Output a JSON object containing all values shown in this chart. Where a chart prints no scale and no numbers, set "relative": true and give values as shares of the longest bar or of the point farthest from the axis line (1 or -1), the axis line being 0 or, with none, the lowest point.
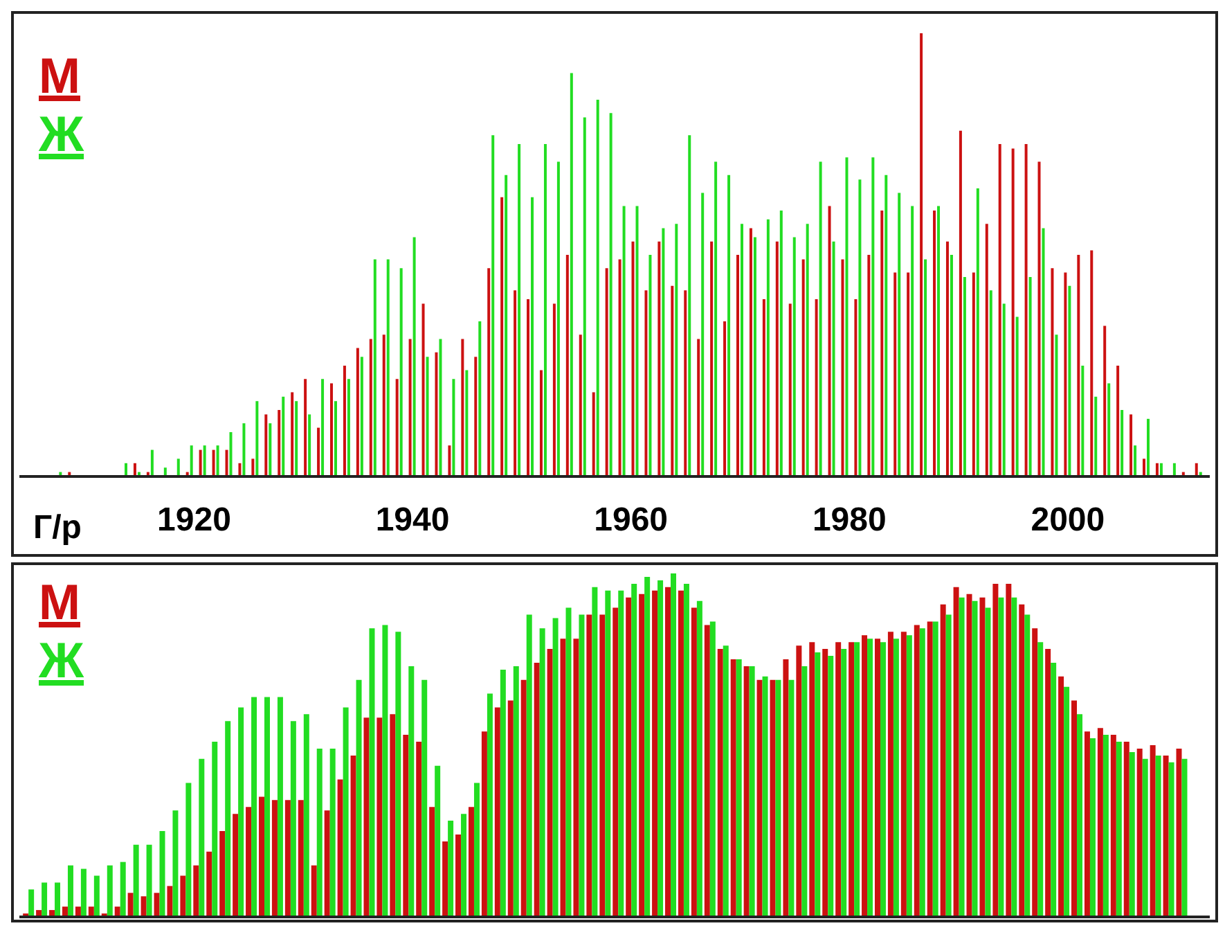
{
  "chart_data": [
    {
      "type": "bar",
      "relative": true,
      "xlabel": "Г/р",
      "xlim": [
        1904,
        2013
      ],
      "xticks": [
        1920,
        1940,
        1960,
        1980,
        2000
      ],
      "tick_labels": "x",
      "legend": "top left",
      "x": [
        1907.6,
        1908.8,
        1910,
        1911.2,
        1912.4,
        1913.6,
        1914.8,
        1916,
        1917.2,
        1918.4,
        1919.6,
        1920.8,
        1922,
        1923.2,
        1924.4,
        1925.6,
        1926.8,
        1928,
        1929.2,
        1930.4,
        1931.6,
        1932.8,
        1934,
        1935.2,
        1936.4,
        1937.6,
        1938.8,
        1940,
        1941.2,
        1942.4,
        1943.6,
        1944.8,
        1946,
        1947.2,
        1948.4,
        1949.6,
        1950.8,
        1952,
        1953.2,
        1954.4,
        1955.6,
        1956.8,
        1958,
        1959.2,
        1960.4,
        1961.6,
        1962.8,
        1964,
        1965.2,
        1966.4,
        1967.6,
        1968.8,
        1970,
        1971.2,
        1972.4,
        1973.6,
        1974.8,
        1976,
        1977.2,
        1978.4,
        1979.6,
        1980.8,
        1982,
        1983.2,
        1984.4,
        1985.6,
        1986.8,
        1988,
        1989.2,
        1990.4,
        1991.6,
        1992.8,
        1994,
        1995.2,
        1996.4,
        1997.6,
        1998.8,
        2000,
        2001.2,
        2002.4,
        2003.6,
        2004.8,
        2006,
        2007.2,
        2008.4,
        2009.6,
        2010.8,
        2012
      ],
      "series": [
        {
          "name": "М",
          "color": "#cc1111",
          "values": [
            0,
            0.01,
            0,
            0,
            0,
            0,
            0.03,
            0.01,
            0,
            0,
            0.01,
            0.06,
            0.06,
            0.06,
            0.03,
            0.04,
            0.14,
            0.15,
            0.19,
            0.22,
            0.11,
            0.21,
            0.25,
            0.29,
            0.31,
            0.32,
            0.22,
            0.31,
            0.39,
            0.28,
            0.07,
            0.31,
            0.27,
            0.47,
            0.63,
            0.42,
            0.4,
            0.24,
            0.39,
            0.5,
            0.32,
            0.19,
            0.47,
            0.49,
            0.53,
            0.42,
            0.53,
            0.43,
            0.42,
            0.31,
            0.53,
            0.35,
            0.5,
            0.56,
            0.4,
            0.53,
            0.39,
            0.49,
            0.4,
            0.61,
            0.49,
            0.4,
            0.5,
            0.6,
            0.46,
            0.46,
            1,
            0.6,
            0.53,
            0.78,
            0.46,
            0.57,
            0.75,
            0.74,
            0.75,
            0.71,
            0.47,
            0.46,
            0.5,
            0.51,
            0.34,
            0.25,
            0.14,
            0.04,
            0.03,
            0,
            0.01,
            0.03
          ]
        },
        {
          "name": "Ж",
          "color": "#22dd22",
          "values": [
            0.01,
            0,
            0,
            0,
            0,
            0.03,
            0.01,
            0.06,
            0.02,
            0.04,
            0.07,
            0.07,
            0.07,
            0.1,
            0.12,
            0.17,
            0.12,
            0.18,
            0.17,
            0.14,
            0.22,
            0.17,
            0.22,
            0.27,
            0.49,
            0.49,
            0.47,
            0.54,
            0.27,
            0.31,
            0.22,
            0.24,
            0.35,
            0.77,
            0.68,
            0.75,
            0.63,
            0.75,
            0.71,
            0.91,
            0.81,
            0.85,
            0.82,
            0.61,
            0.61,
            0.5,
            0.56,
            0.57,
            0.77,
            0.64,
            0.71,
            0.68,
            0.57,
            0.54,
            0.58,
            0.6,
            0.54,
            0.57,
            0.71,
            0.53,
            0.72,
            0.67,
            0.72,
            0.68,
            0.64,
            0.61,
            0.49,
            0.61,
            0.5,
            0.45,
            0.65,
            0.42,
            0.39,
            0.36,
            0.45,
            0.56,
            0.32,
            0.43,
            0.25,
            0.18,
            0.21,
            0.15,
            0.07,
            0.13,
            0.03,
            0.03,
            0,
            0.01
          ]
        }
      ]
    },
    {
      "type": "bar",
      "relative": true,
      "xlim": [
        1904,
        2013
      ],
      "tick_labels": false,
      "legend": "top left",
      "x": [
        1904.8,
        1906,
        1907.2,
        1908.4,
        1909.6,
        1910.8,
        1912,
        1913.2,
        1914.4,
        1915.6,
        1916.8,
        1918,
        1919.2,
        1920.4,
        1921.6,
        1922.8,
        1924,
        1925.2,
        1926.4,
        1927.6,
        1928.8,
        1930,
        1931.2,
        1932.4,
        1933.6,
        1934.8,
        1936,
        1937.2,
        1938.4,
        1939.6,
        1940.8,
        1942,
        1943.2,
        1944.4,
        1945.6,
        1946.8,
        1948,
        1949.2,
        1950.4,
        1951.6,
        1952.8,
        1954,
        1955.2,
        1956.4,
        1957.6,
        1958.8,
        1960,
        1961.2,
        1962.4,
        1963.6,
        1964.8,
        1966,
        1967.2,
        1968.4,
        1969.6,
        1970.8,
        1972,
        1973.2,
        1974.4,
        1975.6,
        1976.8,
        1978,
        1979.2,
        1980.4,
        1981.6,
        1982.8,
        1984,
        1985.2,
        1986.4,
        1987.6,
        1988.8,
        1990,
        1991.2,
        1992.4,
        1993.6,
        1994.8,
        1996,
        1997.2,
        1998.4,
        1999.6,
        2000.8,
        2002,
        2003.2,
        2004.4,
        2005.6,
        2006.8,
        2008,
        2009.2,
        2010.4
      ],
      "series": [
        {
          "name": "М",
          "color": "#cc1111",
          "values": [
            0.01,
            0.02,
            0.02,
            0.03,
            0.03,
            0.03,
            0.01,
            0.03,
            0.07,
            0.06,
            0.07,
            0.09,
            0.12,
            0.15,
            0.19,
            0.25,
            0.3,
            0.32,
            0.35,
            0.34,
            0.34,
            0.34,
            0.15,
            0.31,
            0.4,
            0.47,
            0.58,
            0.58,
            0.59,
            0.53,
            0.51,
            0.32,
            0.22,
            0.24,
            0.32,
            0.54,
            0.61,
            0.63,
            0.69,
            0.74,
            0.78,
            0.81,
            0.81,
            0.88,
            0.88,
            0.9,
            0.93,
            0.94,
            0.95,
            0.96,
            0.95,
            0.9,
            0.85,
            0.78,
            0.75,
            0.73,
            0.69,
            0.69,
            0.75,
            0.79,
            0.8,
            0.78,
            0.8,
            0.8,
            0.82,
            0.81,
            0.83,
            0.83,
            0.85,
            0.86,
            0.91,
            0.96,
            0.94,
            0.93,
            0.97,
            0.97,
            0.91,
            0.84,
            0.78,
            0.7,
            0.63,
            0.54,
            0.55,
            0.53,
            0.51,
            0.49,
            0.5,
            0.47,
            0.49
          ]
        },
        {
          "name": "Ж",
          "color": "#22dd22",
          "values": [
            0.08,
            0.1,
            0.1,
            0.15,
            0.14,
            0.12,
            0.15,
            0.16,
            0.21,
            0.21,
            0.25,
            0.31,
            0.39,
            0.46,
            0.51,
            0.57,
            0.61,
            0.64,
            0.64,
            0.64,
            0.57,
            0.59,
            0.49,
            0.49,
            0.61,
            0.69,
            0.84,
            0.85,
            0.83,
            0.73,
            0.69,
            0.44,
            0.28,
            0.3,
            0.39,
            0.65,
            0.72,
            0.73,
            0.88,
            0.84,
            0.87,
            0.9,
            0.88,
            0.96,
            0.95,
            0.95,
            0.97,
            0.99,
            0.98,
            1,
            0.97,
            0.92,
            0.86,
            0.79,
            0.75,
            0.73,
            0.7,
            0.69,
            0.69,
            0.73,
            0.77,
            0.76,
            0.78,
            0.8,
            0.81,
            0.8,
            0.81,
            0.82,
            0.84,
            0.86,
            0.88,
            0.93,
            0.92,
            0.9,
            0.93,
            0.93,
            0.88,
            0.8,
            0.74,
            0.67,
            0.59,
            0.52,
            0.53,
            0.51,
            0.48,
            0.46,
            0.47,
            0.45,
            0.46
          ]
        }
      ]
    }
  ]
}
